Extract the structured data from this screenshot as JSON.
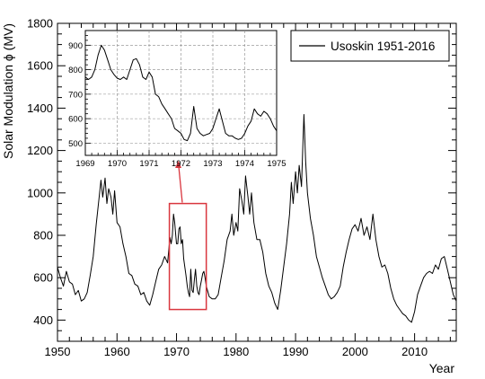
{
  "chart_data": {
    "type": "line",
    "xlabel": "Year",
    "ylabel": "Solar Modulation ϕ (MV)",
    "xlim": [
      1950,
      2017
    ],
    "ylim": [
      300,
      1800
    ],
    "x_ticks": [
      1950,
      1960,
      1970,
      1980,
      1990,
      2000,
      2010
    ],
    "x_tick_labels": [
      "1950",
      "1960",
      "1970",
      "1980",
      "1990",
      "2000",
      "2010"
    ],
    "y_ticks": [
      400,
      600,
      800,
      1000,
      1200,
      1400,
      1600,
      1800
    ],
    "y_tick_labels": [
      "400",
      "600",
      "800",
      "1000",
      "1200",
      "1400",
      "1600",
      "1800"
    ],
    "legend_position": "top-right",
    "grid": false,
    "line_color": "#000000",
    "highlight_color": "#d9363e",
    "highlight_box": {
      "x": [
        1968.8,
        1975
      ],
      "y": [
        450,
        950
      ]
    },
    "series": [
      {
        "name": "Usoskin 1951-2016",
        "points": [
          [
            1950.0,
            650
          ],
          [
            1950.5,
            600
          ],
          [
            1951.0,
            560
          ],
          [
            1951.5,
            630
          ],
          [
            1952.0,
            580
          ],
          [
            1952.5,
            570
          ],
          [
            1953.0,
            520
          ],
          [
            1953.5,
            540
          ],
          [
            1954.0,
            490
          ],
          [
            1954.5,
            500
          ],
          [
            1955.0,
            530
          ],
          [
            1955.5,
            610
          ],
          [
            1956.0,
            700
          ],
          [
            1956.5,
            850
          ],
          [
            1957.0,
            980
          ],
          [
            1957.3,
            1060
          ],
          [
            1957.6,
            980
          ],
          [
            1958.0,
            1070
          ],
          [
            1958.3,
            950
          ],
          [
            1958.6,
            1020
          ],
          [
            1959.0,
            980
          ],
          [
            1959.3,
            900
          ],
          [
            1959.6,
            1010
          ],
          [
            1960.0,
            860
          ],
          [
            1960.5,
            840
          ],
          [
            1961.0,
            760
          ],
          [
            1961.5,
            700
          ],
          [
            1962.0,
            620
          ],
          [
            1962.5,
            610
          ],
          [
            1963.0,
            570
          ],
          [
            1963.5,
            560
          ],
          [
            1964.0,
            520
          ],
          [
            1964.5,
            530
          ],
          [
            1965.0,
            490
          ],
          [
            1965.5,
            470
          ],
          [
            1966.0,
            520
          ],
          [
            1966.5,
            580
          ],
          [
            1967.0,
            640
          ],
          [
            1967.5,
            660
          ],
          [
            1968.0,
            700
          ],
          [
            1968.5,
            670
          ],
          [
            1968.9,
            790
          ],
          [
            1969.1,
            760
          ],
          [
            1969.3,
            800
          ],
          [
            1969.5,
            900
          ],
          [
            1969.7,
            860
          ],
          [
            1969.9,
            790
          ],
          [
            1970.0,
            760
          ],
          [
            1970.2,
            760
          ],
          [
            1970.4,
            830
          ],
          [
            1970.6,
            840
          ],
          [
            1970.8,
            760
          ],
          [
            1971.0,
            780
          ],
          [
            1971.2,
            690
          ],
          [
            1971.4,
            650
          ],
          [
            1971.6,
            610
          ],
          [
            1971.8,
            560
          ],
          [
            1972.0,
            530
          ],
          [
            1972.2,
            510
          ],
          [
            1972.4,
            640
          ],
          [
            1972.6,
            540
          ],
          [
            1972.8,
            530
          ],
          [
            1973.0,
            590
          ],
          [
            1973.2,
            640
          ],
          [
            1973.4,
            560
          ],
          [
            1973.6,
            530
          ],
          [
            1973.8,
            520
          ],
          [
            1974.0,
            560
          ],
          [
            1974.2,
            590
          ],
          [
            1974.4,
            620
          ],
          [
            1974.6,
            630
          ],
          [
            1974.8,
            600
          ],
          [
            1975.0,
            560
          ],
          [
            1975.5,
            510
          ],
          [
            1976.0,
            500
          ],
          [
            1976.5,
            500
          ],
          [
            1977.0,
            520
          ],
          [
            1977.5,
            600
          ],
          [
            1978.0,
            680
          ],
          [
            1978.5,
            780
          ],
          [
            1979.0,
            820
          ],
          [
            1979.3,
            900
          ],
          [
            1979.6,
            800
          ],
          [
            1980.0,
            860
          ],
          [
            1980.3,
            820
          ],
          [
            1980.6,
            1020
          ],
          [
            1981.0,
            960
          ],
          [
            1981.3,
            900
          ],
          [
            1981.6,
            1080
          ],
          [
            1982.0,
            980
          ],
          [
            1982.3,
            900
          ],
          [
            1982.6,
            1000
          ],
          [
            1983.0,
            860
          ],
          [
            1983.5,
            780
          ],
          [
            1984.0,
            780
          ],
          [
            1984.5,
            720
          ],
          [
            1985.0,
            620
          ],
          [
            1985.5,
            560
          ],
          [
            1986.0,
            530
          ],
          [
            1986.5,
            480
          ],
          [
            1987.0,
            450
          ],
          [
            1987.5,
            540
          ],
          [
            1988.0,
            650
          ],
          [
            1988.5,
            760
          ],
          [
            1989.0,
            900
          ],
          [
            1989.3,
            1050
          ],
          [
            1989.6,
            950
          ],
          [
            1990.0,
            1100
          ],
          [
            1990.3,
            1000
          ],
          [
            1990.6,
            1130
          ],
          [
            1991.0,
            1030
          ],
          [
            1991.2,
            1200
          ],
          [
            1991.4,
            1370
          ],
          [
            1991.7,
            1150
          ],
          [
            1992.0,
            1000
          ],
          [
            1992.5,
            880
          ],
          [
            1993.0,
            800
          ],
          [
            1993.5,
            700
          ],
          [
            1994.0,
            650
          ],
          [
            1994.5,
            600
          ],
          [
            1995.0,
            560
          ],
          [
            1995.5,
            520
          ],
          [
            1996.0,
            500
          ],
          [
            1996.5,
            510
          ],
          [
            1997.0,
            530
          ],
          [
            1997.5,
            560
          ],
          [
            1998.0,
            650
          ],
          [
            1998.5,
            720
          ],
          [
            1999.0,
            780
          ],
          [
            1999.5,
            830
          ],
          [
            2000.0,
            850
          ],
          [
            2000.5,
            820
          ],
          [
            2001.0,
            880
          ],
          [
            2001.5,
            800
          ],
          [
            2002.0,
            840
          ],
          [
            2002.5,
            780
          ],
          [
            2003.0,
            900
          ],
          [
            2003.5,
            780
          ],
          [
            2004.0,
            700
          ],
          [
            2004.5,
            650
          ],
          [
            2005.0,
            660
          ],
          [
            2005.5,
            620
          ],
          [
            2006.0,
            550
          ],
          [
            2006.5,
            500
          ],
          [
            2007.0,
            470
          ],
          [
            2007.5,
            450
          ],
          [
            2008.0,
            430
          ],
          [
            2008.5,
            420
          ],
          [
            2009.0,
            400
          ],
          [
            2009.5,
            390
          ],
          [
            2010.0,
            440
          ],
          [
            2010.5,
            520
          ],
          [
            2011.0,
            560
          ],
          [
            2011.5,
            600
          ],
          [
            2012.0,
            620
          ],
          [
            2012.5,
            630
          ],
          [
            2013.0,
            620
          ],
          [
            2013.5,
            660
          ],
          [
            2014.0,
            640
          ],
          [
            2014.5,
            690
          ],
          [
            2015.0,
            700
          ],
          [
            2015.5,
            640
          ],
          [
            2016.0,
            580
          ],
          [
            2016.5,
            520
          ],
          [
            2017.0,
            490
          ]
        ]
      }
    ],
    "inset": {
      "xlim": [
        1969,
        1975
      ],
      "ylim": [
        450,
        960
      ],
      "x_ticks": [
        1969,
        1970,
        1971,
        1972,
        1973,
        1974,
        1975
      ],
      "x_tick_labels": [
        "1969",
        "1970",
        "1971",
        "1972",
        "1973",
        "1974",
        "1975"
      ],
      "y_ticks": [
        500,
        600,
        700,
        800,
        900
      ],
      "y_tick_labels": [
        "500",
        "600",
        "700",
        "800",
        "900"
      ],
      "grid": true,
      "points": [
        [
          1969.0,
          770
        ],
        [
          1969.1,
          760
        ],
        [
          1969.2,
          770
        ],
        [
          1969.3,
          800
        ],
        [
          1969.4,
          860
        ],
        [
          1969.5,
          900
        ],
        [
          1969.6,
          880
        ],
        [
          1969.7,
          840
        ],
        [
          1969.8,
          800
        ],
        [
          1969.9,
          780
        ],
        [
          1970.0,
          765
        ],
        [
          1970.1,
          760
        ],
        [
          1970.2,
          770
        ],
        [
          1970.3,
          760
        ],
        [
          1970.4,
          800
        ],
        [
          1970.5,
          840
        ],
        [
          1970.6,
          845
        ],
        [
          1970.7,
          820
        ],
        [
          1970.8,
          770
        ],
        [
          1970.9,
          760
        ],
        [
          1971.0,
          790
        ],
        [
          1971.1,
          770
        ],
        [
          1971.2,
          700
        ],
        [
          1971.3,
          690
        ],
        [
          1971.4,
          660
        ],
        [
          1971.5,
          640
        ],
        [
          1971.6,
          620
        ],
        [
          1971.7,
          600
        ],
        [
          1971.8,
          560
        ],
        [
          1971.9,
          550
        ],
        [
          1972.0,
          540
        ],
        [
          1972.1,
          515
        ],
        [
          1972.2,
          510
        ],
        [
          1972.3,
          540
        ],
        [
          1972.4,
          650
        ],
        [
          1972.5,
          560
        ],
        [
          1972.6,
          540
        ],
        [
          1972.7,
          530
        ],
        [
          1972.8,
          535
        ],
        [
          1972.9,
          540
        ],
        [
          1973.0,
          560
        ],
        [
          1973.1,
          600
        ],
        [
          1973.2,
          640
        ],
        [
          1973.3,
          590
        ],
        [
          1973.4,
          540
        ],
        [
          1973.5,
          530
        ],
        [
          1973.6,
          530
        ],
        [
          1973.7,
          520
        ],
        [
          1973.8,
          515
        ],
        [
          1973.9,
          520
        ],
        [
          1974.0,
          540
        ],
        [
          1974.1,
          570
        ],
        [
          1974.2,
          590
        ],
        [
          1974.3,
          640
        ],
        [
          1974.4,
          620
        ],
        [
          1974.5,
          610
        ],
        [
          1974.6,
          630
        ],
        [
          1974.7,
          620
        ],
        [
          1974.8,
          600
        ],
        [
          1974.9,
          570
        ],
        [
          1975.0,
          550
        ]
      ]
    }
  }
}
